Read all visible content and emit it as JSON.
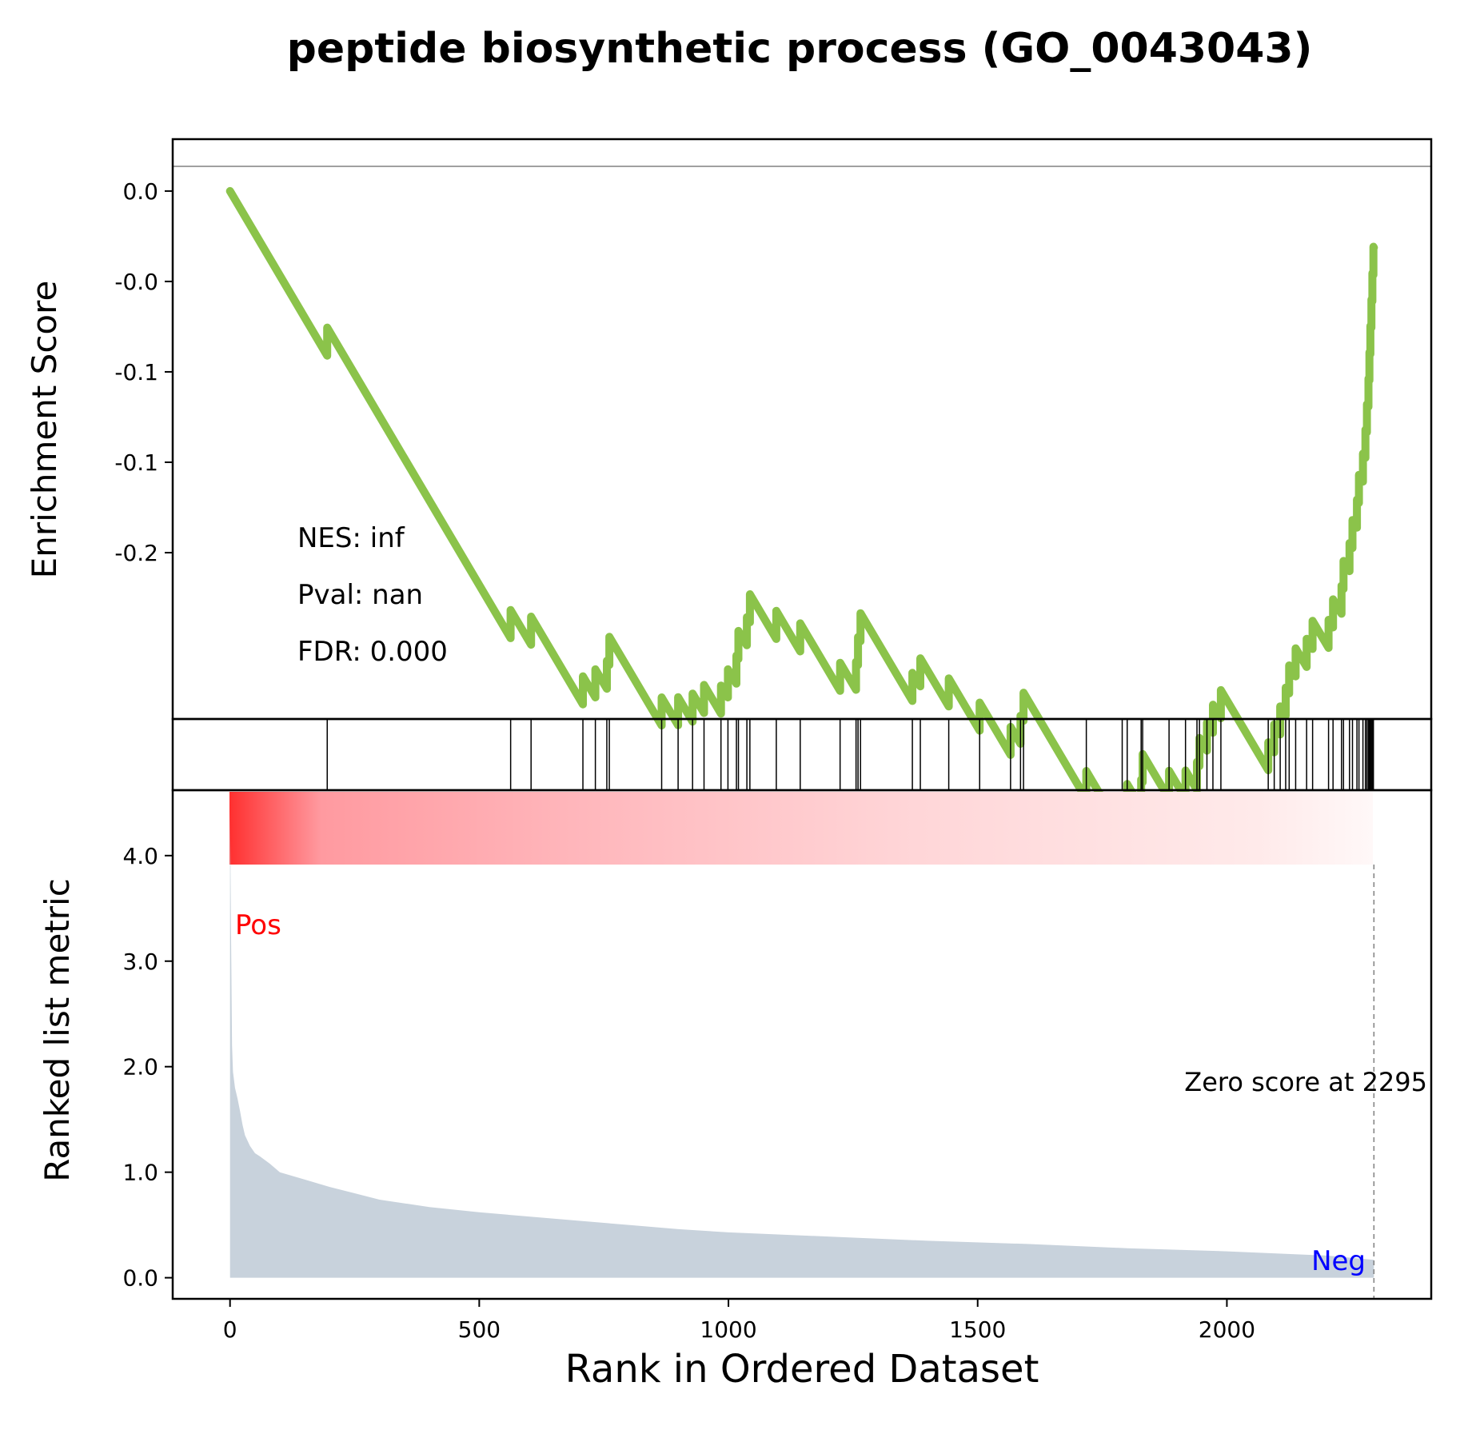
{
  "chart_data": {
    "type": "line",
    "title": "peptide biosynthetic process (GO_0043043)",
    "xlabel": "Rank in Ordered Dataset",
    "x_ticks": [
      "0",
      "500",
      "1000",
      "1500",
      "2000"
    ],
    "x_tick_values": [
      0,
      500,
      1000,
      1500,
      2000
    ],
    "xlim": [
      -115,
      2410
    ],
    "enrichment_panel": {
      "ylabel": "Enrichment Score",
      "ylim": [
        -0.292,
        0.0287
      ],
      "y_ticks": [
        {
          "value": 0.0,
          "label": "0.0"
        },
        {
          "value": -0.05,
          "label": "-0.0"
        },
        {
          "value": -0.1,
          "label": "-0.1"
        },
        {
          "value": -0.15,
          "label": "-0.1"
        },
        {
          "value": -0.2,
          "label": "-0.2"
        }
      ],
      "line_color": "#8bc34a",
      "hits": [
        195,
        563,
        604,
        708,
        733,
        756,
        761,
        866,
        899,
        928,
        951,
        985,
        999,
        1016,
        1020,
        1037,
        1043,
        1096,
        1144,
        1224,
        1256,
        1260,
        1265,
        1369,
        1385,
        1442,
        1504,
        1566,
        1586,
        1592,
        1718,
        1790,
        1800,
        1828,
        1831,
        1884,
        1917,
        1940,
        1945,
        1960,
        1972,
        1988,
        2083,
        2095,
        2107,
        2118,
        2125,
        2138,
        2160,
        2172,
        2204,
        2213,
        2230,
        2234,
        2246,
        2252,
        2261,
        2265,
        2273,
        2278,
        2281,
        2284,
        2286,
        2288,
        2290,
        2292,
        2294
      ],
      "stats": {
        "nes": "NES: inf",
        "pval": "Pval: nan",
        "fdr": "FDR: 0.000"
      }
    },
    "rank_panel": {
      "ylabel": "Ranked list metric",
      "ylim": [
        -0.2,
        4.62
      ],
      "y_ticks": [
        "4.0",
        "3.0",
        "2.0",
        "1.0",
        "0.0"
      ],
      "y_tick_values": [
        4,
        3,
        2,
        1,
        0
      ],
      "fill_color": "#c8d2dc",
      "series": {
        "x": [
          0,
          2,
          4,
          6,
          10,
          15,
          20,
          25,
          30,
          40,
          50,
          60,
          80,
          100,
          150,
          200,
          250,
          300,
          400,
          500,
          600,
          700,
          800,
          900,
          1000,
          1200,
          1400,
          1600,
          1800,
          2000,
          2200,
          2295
        ],
        "y": [
          4.42,
          3.3,
          2.2,
          1.95,
          1.8,
          1.7,
          1.58,
          1.45,
          1.35,
          1.25,
          1.18,
          1.15,
          1.08,
          1.0,
          0.93,
          0.86,
          0.8,
          0.74,
          0.67,
          0.62,
          0.58,
          0.54,
          0.5,
          0.46,
          0.43,
          0.39,
          0.35,
          0.32,
          0.28,
          0.25,
          0.21,
          0.17
        ]
      },
      "zero_score_label": "Zero score at 2295",
      "zero_score_rank": 2295,
      "pos_label": "Pos",
      "neg_label": "Neg"
    }
  }
}
